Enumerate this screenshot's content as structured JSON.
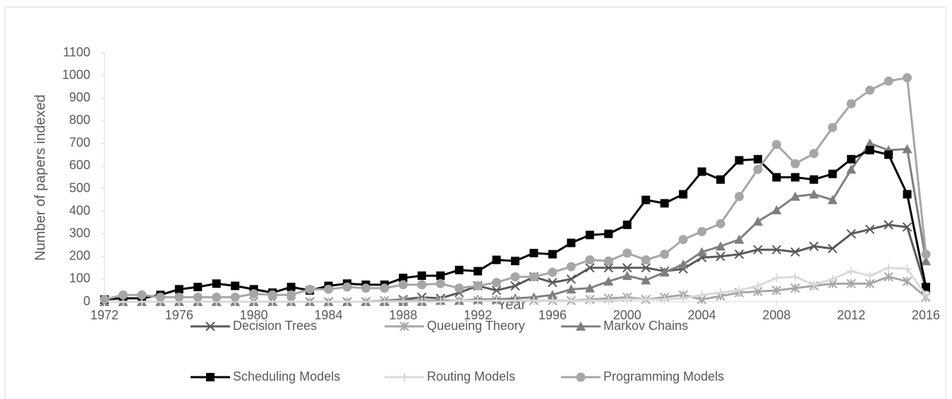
{
  "chart_data": {
    "type": "line",
    "xlabel": "Year",
    "ylabel": "Number of papers indexed",
    "x": [
      1972,
      1973,
      1974,
      1975,
      1976,
      1977,
      1978,
      1979,
      1980,
      1981,
      1982,
      1983,
      1984,
      1985,
      1986,
      1987,
      1988,
      1989,
      1990,
      1991,
      1992,
      1993,
      1994,
      1995,
      1996,
      1997,
      1998,
      1999,
      2000,
      2001,
      2002,
      2003,
      2004,
      2005,
      2006,
      2007,
      2008,
      2009,
      2010,
      2011,
      2012,
      2013,
      2014,
      2015,
      2016
    ],
    "xlim": [
      1972,
      2016
    ],
    "xticks": [
      1972,
      1976,
      1980,
      1984,
      1988,
      1992,
      1996,
      2000,
      2004,
      2008,
      2012,
      2016
    ],
    "ylim": [
      0,
      1100
    ],
    "yticks": [
      0,
      100,
      200,
      300,
      400,
      500,
      600,
      700,
      800,
      900,
      1000,
      1100
    ],
    "series": [
      {
        "name": "Decision Trees",
        "color": "#595959",
        "marker": "x",
        "values": [
          0,
          0,
          0,
          0,
          0,
          0,
          0,
          0,
          0,
          0,
          0,
          0,
          0,
          0,
          0,
          5,
          10,
          20,
          15,
          40,
          70,
          50,
          70,
          110,
          85,
          100,
          150,
          150,
          150,
          150,
          135,
          145,
          195,
          200,
          210,
          230,
          230,
          220,
          245,
          235,
          300,
          320,
          340,
          330,
          60
        ]
      },
      {
        "name": "Queueing Theory",
        "color": "#a6a6a6",
        "marker": "asterisk",
        "values": [
          0,
          0,
          0,
          0,
          0,
          0,
          0,
          0,
          0,
          0,
          0,
          0,
          0,
          0,
          0,
          5,
          5,
          5,
          5,
          5,
          5,
          5,
          5,
          5,
          5,
          5,
          10,
          15,
          20,
          10,
          20,
          30,
          10,
          25,
          40,
          45,
          50,
          60,
          70,
          80,
          80,
          80,
          110,
          90,
          20
        ]
      },
      {
        "name": "Markov Chains",
        "color": "#7f7f7f",
        "marker": "triangle",
        "values": [
          0,
          0,
          0,
          0,
          0,
          0,
          0,
          0,
          0,
          0,
          0,
          0,
          0,
          0,
          0,
          0,
          0,
          0,
          5,
          5,
          10,
          10,
          15,
          20,
          30,
          55,
          60,
          90,
          115,
          95,
          130,
          165,
          220,
          245,
          275,
          355,
          405,
          465,
          475,
          450,
          585,
          700,
          670,
          675,
          180
        ]
      },
      {
        "name": "Scheduling Models",
        "color": "#000000",
        "marker": "square",
        "values": [
          10,
          15,
          15,
          30,
          55,
          65,
          80,
          70,
          55,
          40,
          65,
          50,
          70,
          80,
          75,
          75,
          105,
          115,
          115,
          140,
          135,
          185,
          180,
          215,
          210,
          260,
          295,
          300,
          340,
          450,
          435,
          475,
          575,
          540,
          625,
          630,
          550,
          550,
          540,
          565,
          630,
          670,
          650,
          475,
          65
        ]
      },
      {
        "name": "Routing Models",
        "color": "#d9d9d9",
        "marker": "plus",
        "values": [
          0,
          0,
          0,
          0,
          0,
          0,
          0,
          0,
          0,
          0,
          0,
          0,
          0,
          0,
          0,
          0,
          0,
          0,
          0,
          5,
          5,
          5,
          5,
          5,
          5,
          5,
          5,
          5,
          10,
          10,
          10,
          15,
          30,
          40,
          50,
          70,
          105,
          110,
          75,
          100,
          135,
          115,
          150,
          145,
          30
        ]
      },
      {
        "name": "Programming Models",
        "color": "#a6a6a6",
        "marker": "circle",
        "values": [
          10,
          30,
          30,
          20,
          20,
          20,
          20,
          20,
          35,
          30,
          30,
          55,
          55,
          65,
          60,
          60,
          75,
          75,
          80,
          60,
          70,
          85,
          110,
          110,
          130,
          155,
          185,
          180,
          215,
          185,
          210,
          275,
          310,
          345,
          465,
          585,
          695,
          610,
          655,
          770,
          875,
          935,
          975,
          990,
          210
        ]
      }
    ]
  }
}
